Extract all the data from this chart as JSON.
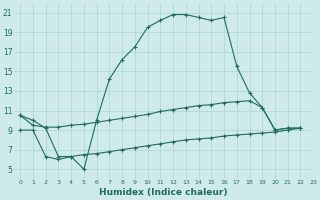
{
  "line1_x": [
    0,
    1,
    2,
    3,
    4,
    5,
    6,
    7,
    8,
    9,
    10,
    11,
    12,
    13,
    14,
    15,
    16,
    17,
    18,
    19,
    20,
    21,
    22
  ],
  "line1_y": [
    10.5,
    10.0,
    9.2,
    6.3,
    6.3,
    5.0,
    10.0,
    14.2,
    16.2,
    17.5,
    19.5,
    20.2,
    20.8,
    20.8,
    20.5,
    20.2,
    20.5,
    15.5,
    12.8,
    11.3,
    9.0,
    9.2,
    9.2
  ],
  "line2_x": [
    0,
    1,
    2,
    3,
    4,
    5,
    6,
    7,
    8,
    9,
    10,
    11,
    12,
    13,
    14,
    15,
    16,
    17,
    18,
    19,
    20,
    21,
    22
  ],
  "line2_y": [
    10.5,
    9.5,
    9.3,
    9.3,
    9.5,
    9.6,
    9.8,
    10.0,
    10.2,
    10.4,
    10.6,
    10.9,
    11.1,
    11.3,
    11.5,
    11.6,
    11.8,
    11.9,
    12.0,
    11.3,
    9.0,
    9.2,
    9.2
  ],
  "line3_x": [
    0,
    1,
    2,
    3,
    4,
    5,
    6,
    7,
    8,
    9,
    10,
    11,
    12,
    13,
    14,
    15,
    16,
    17,
    18,
    19,
    20,
    21,
    22
  ],
  "line3_y": [
    9.0,
    9.0,
    6.3,
    6.0,
    6.3,
    6.5,
    6.6,
    6.8,
    7.0,
    7.2,
    7.4,
    7.6,
    7.8,
    8.0,
    8.1,
    8.2,
    8.4,
    8.5,
    8.6,
    8.7,
    8.8,
    9.0,
    9.2
  ],
  "line_color": "#216b5e",
  "bg_color": "#ceeaea",
  "grid_color": "#aad4d4",
  "xlabel": "Humidex (Indice chaleur)",
  "xlim": [
    -0.5,
    23
  ],
  "ylim": [
    4,
    22
  ],
  "xticks": [
    0,
    1,
    2,
    3,
    4,
    5,
    6,
    7,
    8,
    9,
    10,
    11,
    12,
    13,
    14,
    15,
    16,
    17,
    18,
    19,
    20,
    21,
    22,
    23
  ],
  "yticks": [
    5,
    7,
    9,
    11,
    13,
    15,
    17,
    19,
    21
  ],
  "marker": "+"
}
